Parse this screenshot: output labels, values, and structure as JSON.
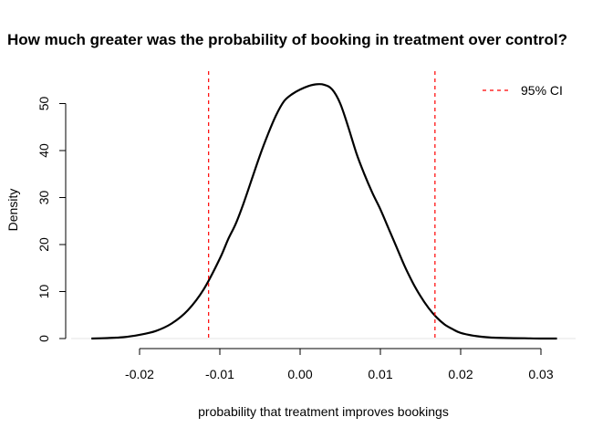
{
  "chart_data": {
    "type": "line",
    "title": "How much greater was the probability of booking in treatment over control?",
    "xlabel": "probability that treatment improves bookings",
    "ylabel": "Density",
    "xlim": [
      -0.02,
      0.03
    ],
    "ylim": [
      0,
      50
    ],
    "x_ticks": [
      -0.02,
      -0.01,
      0.0,
      0.01,
      0.02,
      0.03
    ],
    "x_tick_labels": [
      "-0.02",
      "-0.01",
      "0.00",
      "0.01",
      "0.02",
      "0.03"
    ],
    "y_ticks": [
      0,
      10,
      20,
      30,
      40,
      50
    ],
    "y_tick_labels": [
      "0",
      "10",
      "20",
      "30",
      "40",
      "50"
    ],
    "grid": false,
    "legend": {
      "position": "top-right",
      "entries": [
        {
          "label": "95% CI",
          "color": "#ff0000",
          "style": "dashed"
        }
      ]
    },
    "series": [
      {
        "color": "#000000",
        "x": [
          -0.026,
          -0.024,
          -0.022,
          -0.02,
          -0.018,
          -0.016,
          -0.014,
          -0.012,
          -0.01,
          -0.009,
          -0.008,
          -0.007,
          -0.006,
          -0.005,
          -0.004,
          -0.003,
          -0.002,
          -0.001,
          0.0,
          0.001,
          0.002,
          0.003,
          0.004,
          0.005,
          0.006,
          0.007,
          0.008,
          0.009,
          0.01,
          0.011,
          0.012,
          0.013,
          0.014,
          0.015,
          0.016,
          0.017,
          0.018,
          0.019,
          0.02,
          0.022,
          0.024,
          0.026,
          0.028,
          0.03,
          0.032
        ],
        "y": [
          0.0,
          0.1,
          0.3,
          0.8,
          1.6,
          3.2,
          6.0,
          10.5,
          17.0,
          21.0,
          24.5,
          29.0,
          34.0,
          39.0,
          43.5,
          47.5,
          50.5,
          52.0,
          53.0,
          53.7,
          54.1,
          54.0,
          53.0,
          50.0,
          45.0,
          39.5,
          35.0,
          31.0,
          27.5,
          23.5,
          19.5,
          15.5,
          12.0,
          9.0,
          6.5,
          4.5,
          3.0,
          2.0,
          1.2,
          0.5,
          0.2,
          0.1,
          0.05,
          0.0,
          0.0
        ]
      }
    ],
    "reference_lines": [
      {
        "x": -0.0114,
        "color": "#ff0000",
        "style": "dashed",
        "legend": "95% CI"
      },
      {
        "x": 0.0168,
        "color": "#ff0000",
        "style": "dashed",
        "legend": "95% CI"
      }
    ]
  }
}
